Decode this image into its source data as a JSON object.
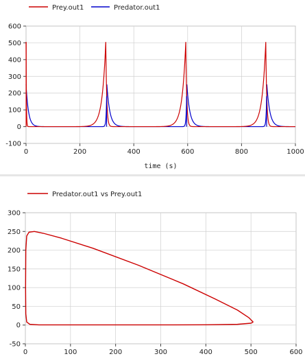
{
  "chart_data": [
    {
      "type": "line",
      "title": "",
      "xlabel": "time (s)",
      "ylabel": "",
      "xlim": [
        0,
        1000
      ],
      "ylim": [
        -100,
        600
      ],
      "x_ticks": [
        0,
        200,
        400,
        600,
        800,
        1000
      ],
      "y_ticks": [
        -100,
        0,
        100,
        200,
        300,
        400,
        500,
        600
      ],
      "grid": true,
      "legend": "top-left",
      "period": 296,
      "series": [
        {
          "name": "Prey.out1",
          "color": "#cc0000",
          "peak": 505,
          "peak_times": [
            0,
            296,
            593,
            890
          ]
        },
        {
          "name": "Predator.out1",
          "color": "#0000cc",
          "peak": 252,
          "peak_times": [
            0,
            300,
            597,
            894
          ]
        }
      ]
    },
    {
      "type": "line",
      "title": "Predator.out1 vs Prey.out1",
      "xlabel": "",
      "ylabel": "",
      "xlim": [
        0,
        600
      ],
      "ylim": [
        -50,
        300
      ],
      "x_ticks": [
        0,
        100,
        200,
        300,
        400,
        500,
        600
      ],
      "y_ticks": [
        -50,
        0,
        50,
        100,
        150,
        200,
        250,
        300
      ],
      "grid": true,
      "legend": "top-left",
      "series": [
        {
          "name": "Predator.out1 vs Prey.out1",
          "color": "#cc0000",
          "x": [
            505,
            495,
            470,
            420,
            350,
            250,
            150,
            80,
            40,
            20,
            8,
            3,
            1,
            0.5,
            1,
            3,
            10,
            30,
            100,
            200,
            300,
            400,
            470,
            500,
            505
          ],
          "y": [
            8,
            20,
            40,
            70,
            110,
            160,
            205,
            232,
            245,
            250,
            248,
            238,
            200,
            100,
            30,
            8,
            2,
            0.5,
            0.5,
            0.5,
            0.5,
            0.8,
            2,
            5,
            8
          ]
        }
      ]
    }
  ]
}
